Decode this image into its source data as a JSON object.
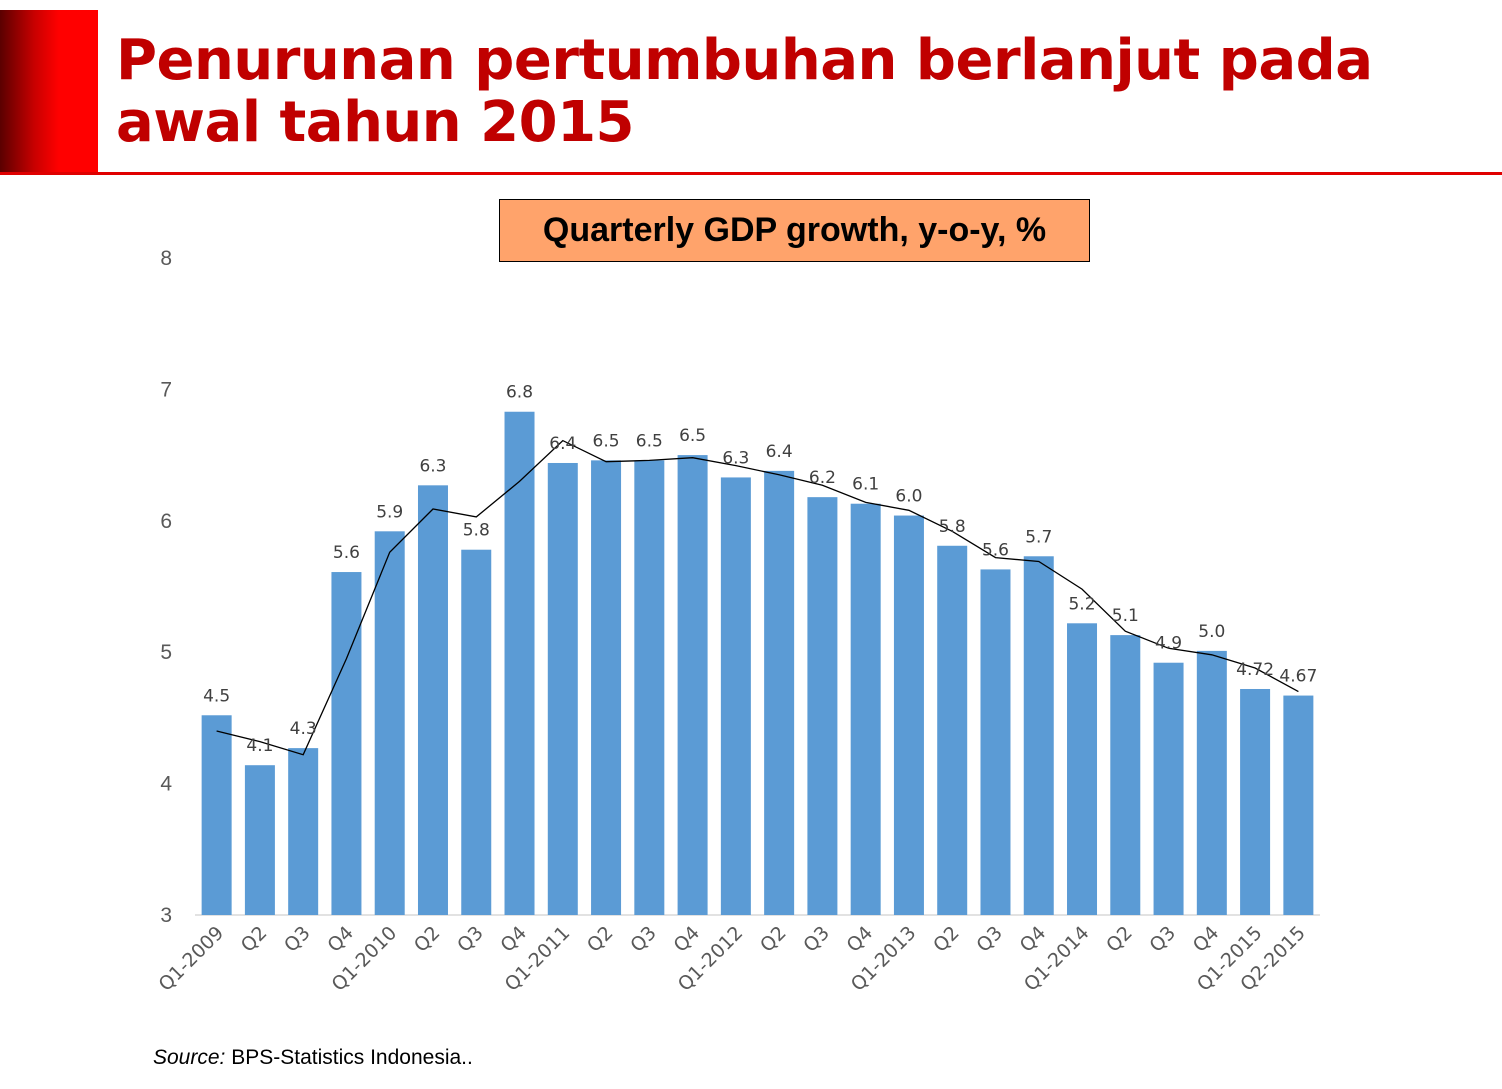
{
  "slide": {
    "title": "Penurunan pertumbuhan berlanjut pada awal tahun 2015",
    "accent_color": "#c00000",
    "source_label": "Source:",
    "source_text": "BPS-Statistics Indonesia.."
  },
  "chart_data": {
    "type": "bar",
    "title": "Quarterly GDP growth, y-o-y, %",
    "categories": [
      "Q1-2009",
      "Q2",
      "Q3",
      "Q4",
      "Q1-2010",
      "Q2",
      "Q3",
      "Q4",
      "Q1-2011",
      "Q2",
      "Q3",
      "Q4",
      "Q1-2012",
      "Q2",
      "Q3",
      "Q4",
      "Q1-2013",
      "Q2",
      "Q3",
      "Q4",
      "Q1-2014",
      "Q2",
      "Q3",
      "Q4",
      "Q1-2015",
      "Q2-2015"
    ],
    "values": [
      4.52,
      4.14,
      4.27,
      5.61,
      5.92,
      6.27,
      5.78,
      6.83,
      6.44,
      6.46,
      6.46,
      6.5,
      6.33,
      6.38,
      6.18,
      6.13,
      6.04,
      5.81,
      5.63,
      5.73,
      5.22,
      5.13,
      4.92,
      5.01,
      4.72,
      4.67
    ],
    "data_labels": [
      "4.5",
      "4.1",
      "4.3",
      "5.6",
      "5.9",
      "6.3",
      "5.8",
      "6.8",
      "6.4",
      "6.5",
      "6.5",
      "6.5",
      "6.3",
      "6.4",
      "6.2",
      "6.1",
      "6.0",
      "5.8",
      "5.6",
      "5.7",
      "5.2",
      "5.1",
      "4.9",
      "5.0",
      "4.72",
      "4.67"
    ],
    "trend_line": [
      4.4,
      4.32,
      4.22,
      4.95,
      5.76,
      6.09,
      6.03,
      6.3,
      6.61,
      6.45,
      6.46,
      6.48,
      6.42,
      6.35,
      6.27,
      6.14,
      6.08,
      5.92,
      5.72,
      5.69,
      5.48,
      5.16,
      5.03,
      4.98,
      4.88,
      4.7
    ],
    "ylim": [
      3,
      8
    ],
    "yticks": [
      "3",
      "4",
      "5",
      "6",
      "7",
      "8"
    ],
    "bar_color": "#5b9bd5",
    "line_color": "#000000",
    "xlabel": "",
    "ylabel": ""
  }
}
